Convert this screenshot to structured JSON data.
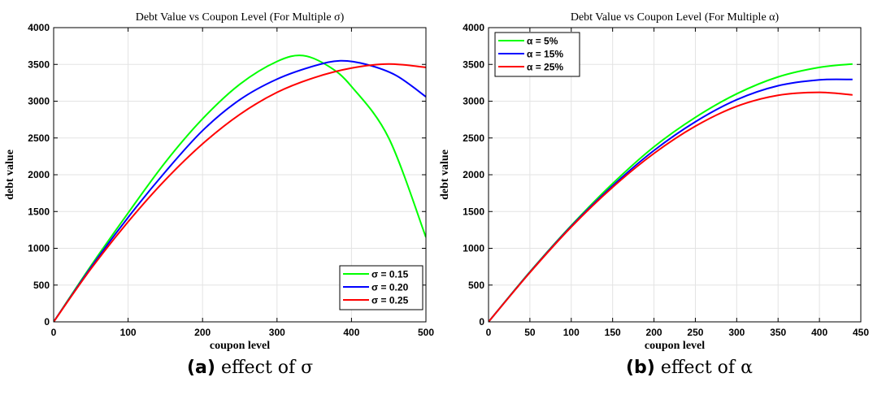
{
  "chart_data": [
    {
      "type": "line",
      "title": "Debt Value vs Coupon Level (For Multiple σ)",
      "xlabel": "coupon level",
      "ylabel": "debt value",
      "xlim": [
        0,
        500
      ],
      "ylim": [
        0,
        4000
      ],
      "xticks": [
        0,
        100,
        200,
        300,
        400,
        500
      ],
      "yticks": [
        0,
        500,
        1000,
        1500,
        2000,
        2500,
        3000,
        3500,
        4000
      ],
      "grid": true,
      "legend": "bottom-right",
      "series": [
        {
          "name": "σ = 0.15",
          "color": "#00ff00",
          "x": [
            0,
            50,
            100,
            150,
            200,
            250,
            300,
            335,
            370,
            400,
            450,
            500
          ],
          "y": [
            0,
            760,
            1480,
            2170,
            2760,
            3230,
            3540,
            3620,
            3470,
            3200,
            2500,
            1150
          ]
        },
        {
          "name": "σ = 0.20",
          "color": "#0000ff",
          "x": [
            0,
            50,
            100,
            150,
            200,
            250,
            300,
            350,
            385,
            420,
            460,
            500
          ],
          "y": [
            0,
            740,
            1420,
            2040,
            2600,
            3020,
            3300,
            3480,
            3550,
            3500,
            3350,
            3060
          ]
        },
        {
          "name": "σ = 0.25",
          "color": "#ff0000",
          "x": [
            0,
            50,
            100,
            150,
            200,
            250,
            300,
            350,
            400,
            450,
            500
          ],
          "y": [
            0,
            720,
            1360,
            1930,
            2420,
            2820,
            3120,
            3320,
            3450,
            3505,
            3460
          ]
        }
      ]
    },
    {
      "type": "line",
      "title": "Debt Value vs Coupon Level (For Multiple α)",
      "xlabel": "coupon level",
      "ylabel": "debt value",
      "xlim": [
        0,
        450
      ],
      "ylim": [
        0,
        4000
      ],
      "xticks": [
        0,
        50,
        100,
        150,
        200,
        250,
        300,
        350,
        400,
        450
      ],
      "yticks": [
        0,
        500,
        1000,
        1500,
        2000,
        2500,
        3000,
        3500,
        4000
      ],
      "grid": true,
      "legend": "top-left",
      "series": [
        {
          "name": "α = 5%",
          "color": "#00ff00",
          "x": [
            0,
            50,
            100,
            150,
            200,
            250,
            300,
            350,
            400,
            440
          ],
          "y": [
            0,
            680,
            1310,
            1880,
            2380,
            2780,
            3100,
            3330,
            3460,
            3505
          ]
        },
        {
          "name": "α = 15%",
          "color": "#0000ff",
          "x": [
            0,
            50,
            100,
            150,
            200,
            250,
            300,
            350,
            400,
            440
          ],
          "y": [
            0,
            675,
            1300,
            1850,
            2330,
            2720,
            3020,
            3210,
            3290,
            3295
          ]
        },
        {
          "name": "α = 25%",
          "color": "#ff0000",
          "x": [
            0,
            50,
            100,
            150,
            200,
            250,
            300,
            350,
            400,
            440
          ],
          "y": [
            0,
            670,
            1290,
            1830,
            2290,
            2660,
            2930,
            3080,
            3120,
            3085
          ]
        }
      ]
    }
  ],
  "captions": [
    {
      "tag": "(a)",
      "text": "effect of σ"
    },
    {
      "tag": "(b)",
      "text": "effect of α"
    }
  ]
}
